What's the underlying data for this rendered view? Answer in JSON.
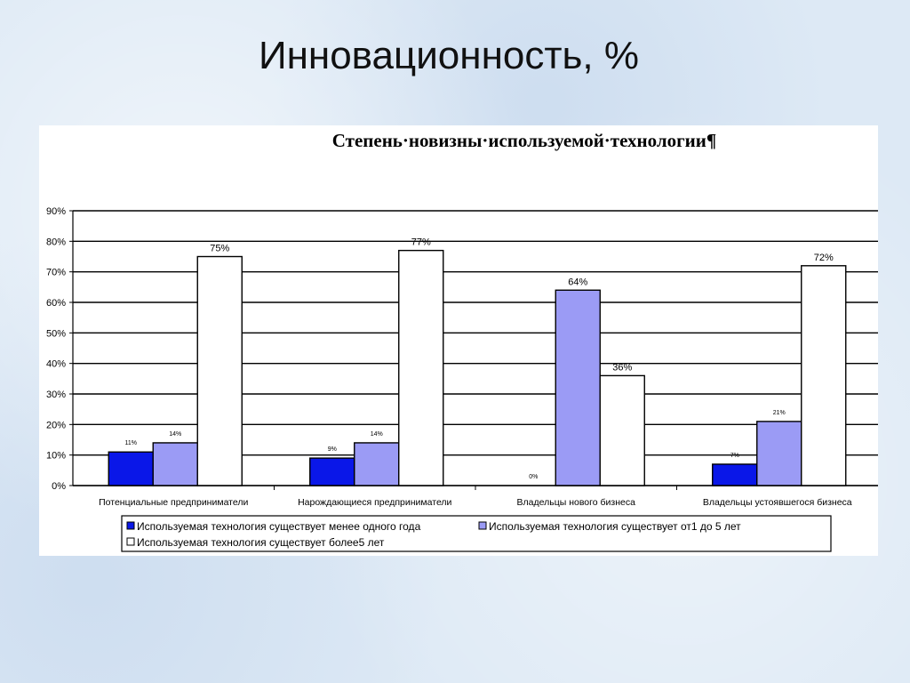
{
  "slide": {
    "title": "Инновационность, %"
  },
  "chart_data": {
    "type": "bar",
    "title": "Степень·новизны·используемой·технологии¶",
    "categories": [
      "Потенциальные предприниматели",
      "Нарождающиеся предприниматели",
      "Владельцы нового бизнеса",
      "Владельцы устоявшегося бизнеса"
    ],
    "series": [
      {
        "name": "Используемая технология существует менее одного года",
        "values": [
          11,
          9,
          0,
          7
        ],
        "labels": [
          "11%",
          "9%",
          "0%",
          "7%"
        ],
        "color": "#0a17e8"
      },
      {
        "name": "Используемая технология существует от1 до 5 лет",
        "values": [
          14,
          14,
          64,
          21
        ],
        "labels": [
          "14%",
          "14%",
          "64%",
          "21%"
        ],
        "color": "#9b9bf5"
      },
      {
        "name": "Используемая технология существует более5 лет",
        "values": [
          75,
          77,
          36,
          72
        ],
        "labels": [
          "75%",
          "77%",
          "36%",
          "72%"
        ],
        "color": "#ffffff"
      }
    ],
    "ylim": [
      0,
      90
    ],
    "yticks": [
      "0%",
      "10%",
      "20%",
      "30%",
      "40%",
      "50%",
      "60%",
      "70%",
      "80%",
      "90%"
    ],
    "grid": true,
    "legend": "bottom",
    "xlabel": "",
    "ylabel": ""
  }
}
